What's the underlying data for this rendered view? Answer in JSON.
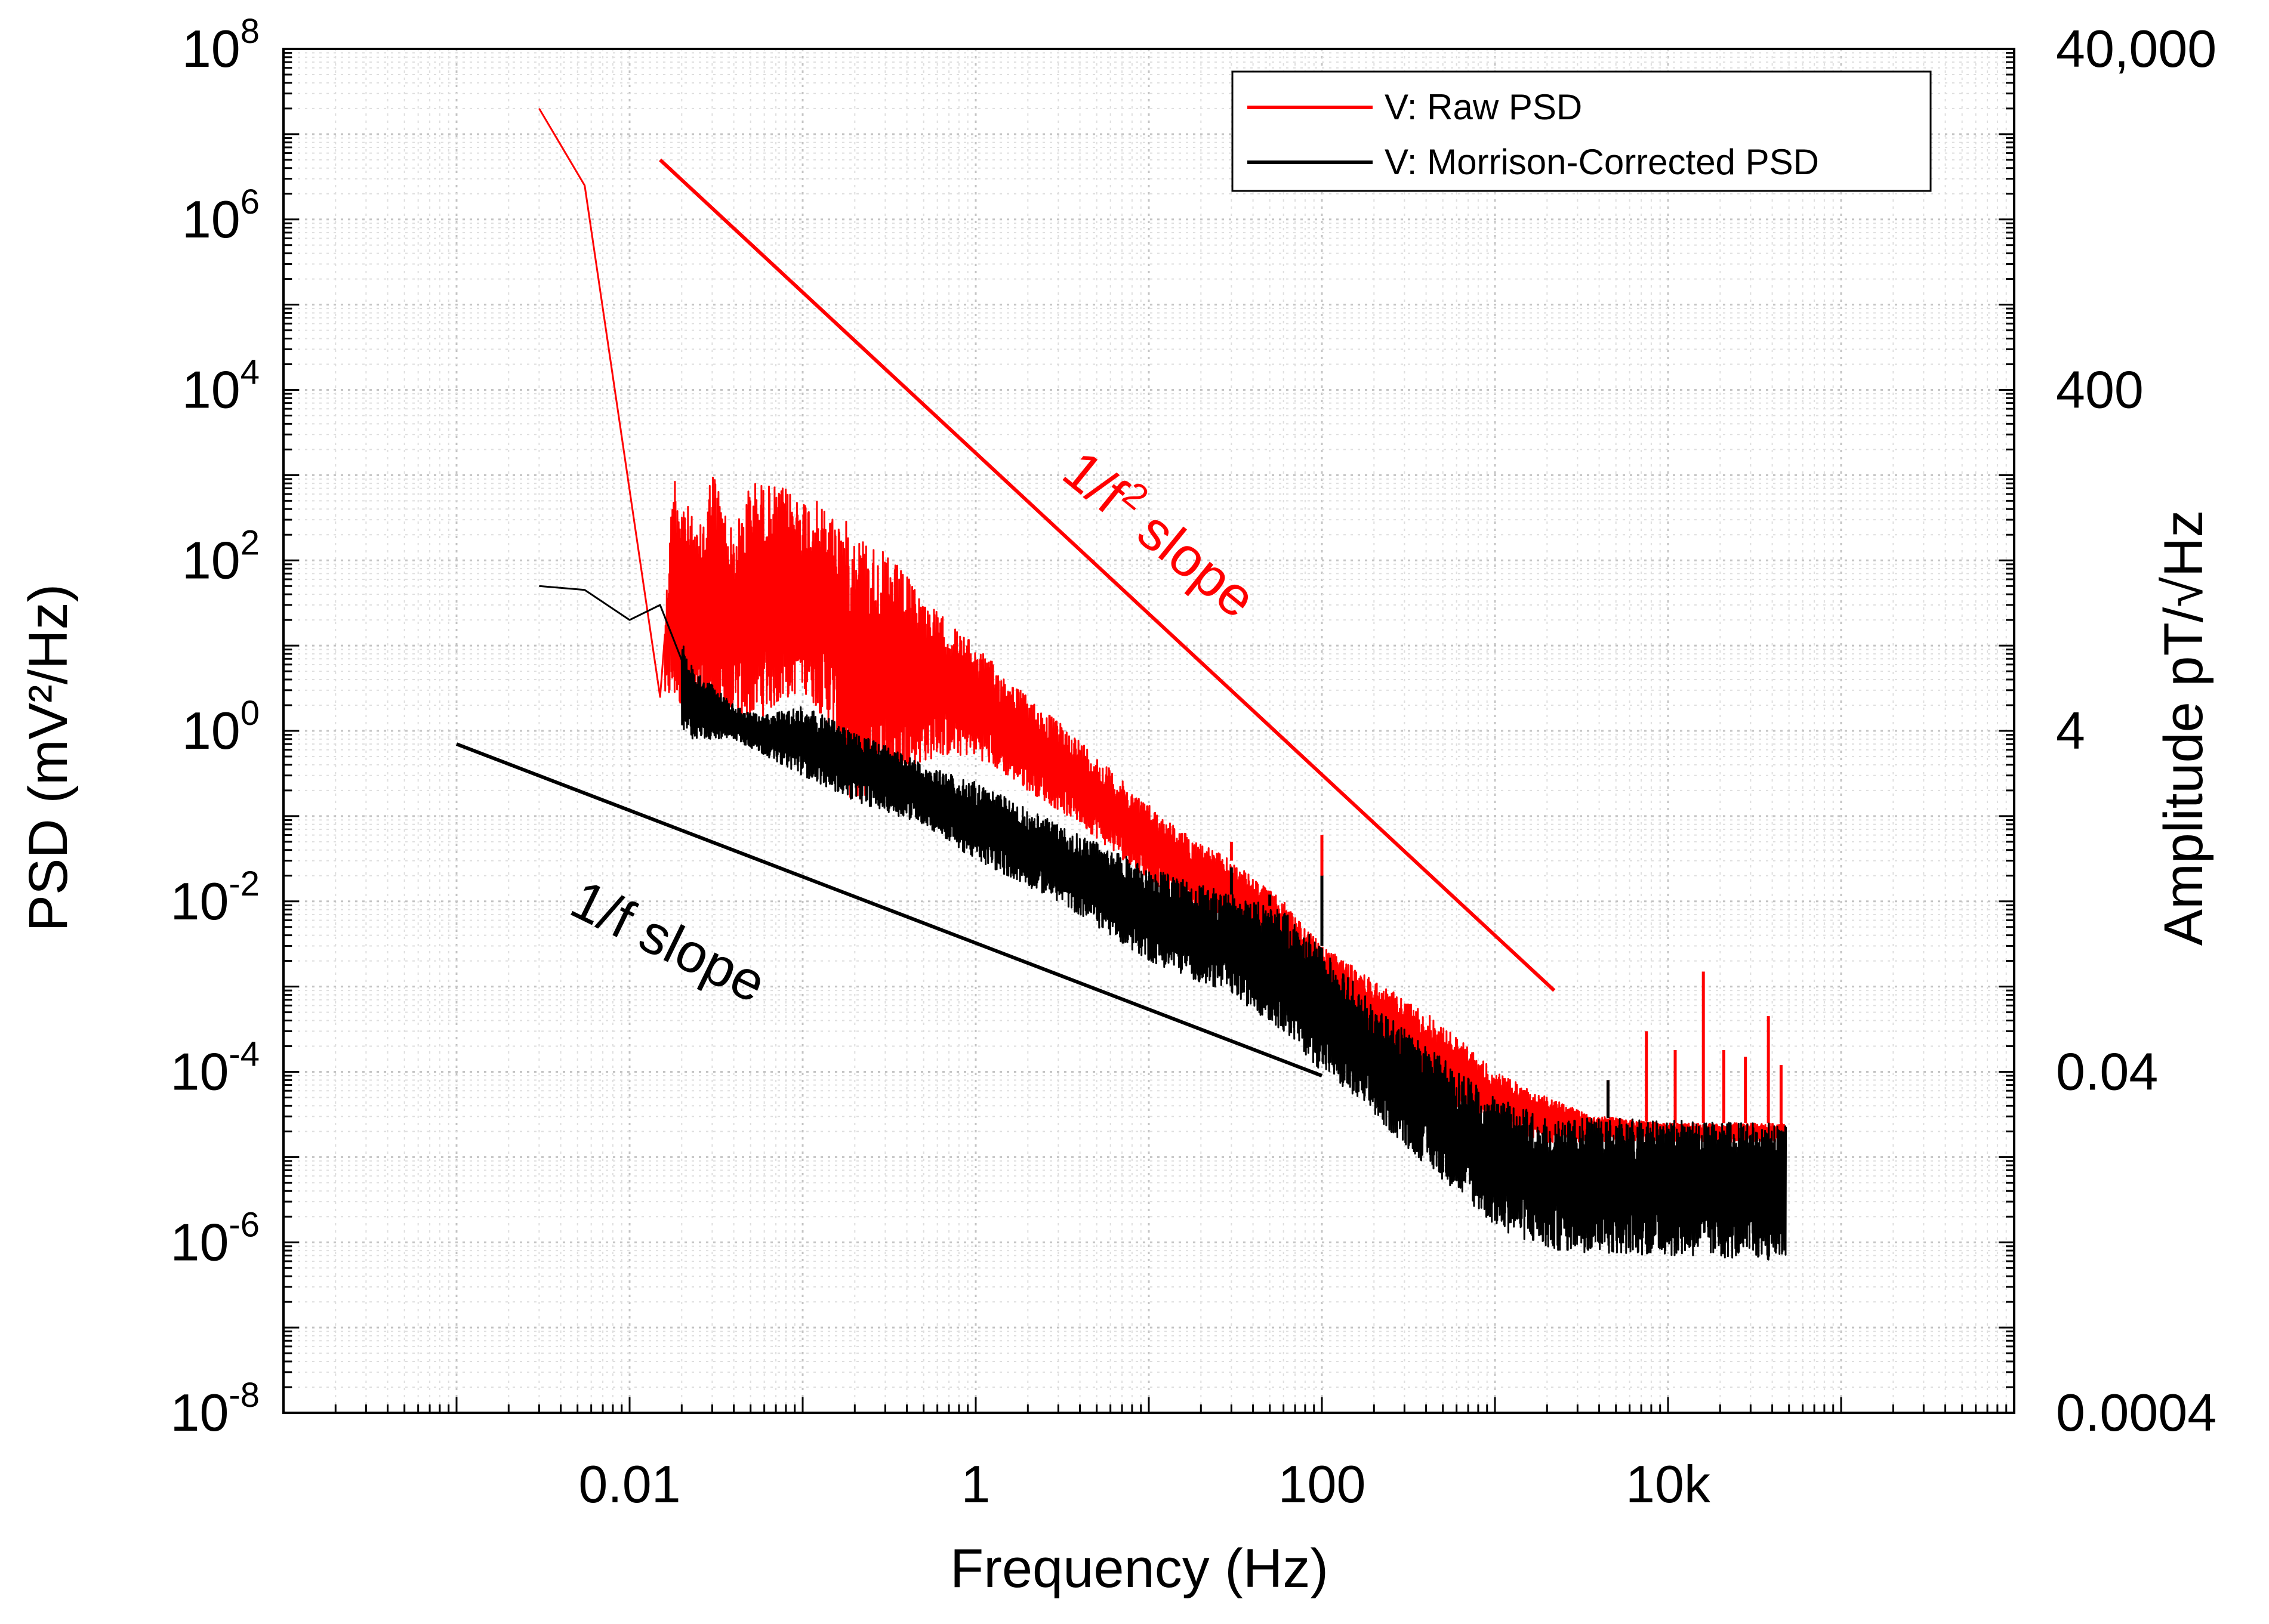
{
  "chart_data": {
    "type": "line",
    "title": "",
    "xlabel": "Frequency (Hz)",
    "ylabel": "PSD (mV²/Hz)",
    "ylabel_right": "Amplitude pT/√Hz",
    "xscale": "log",
    "yscale": "log",
    "xlim": [
      0.0001,
      1000000
    ],
    "ylim": [
      1e-08,
      100000000.0
    ],
    "grid": "major and minor, dotted",
    "legend_position": "top-right",
    "x_ticks": [
      {
        "value": 0.01,
        "label": "0.01"
      },
      {
        "value": 1,
        "label": "1"
      },
      {
        "value": 100,
        "label": "100"
      },
      {
        "value": 10000,
        "label": "10k"
      }
    ],
    "y_ticks": [
      {
        "value": 100000000.0,
        "base": "10",
        "exp": "8"
      },
      {
        "value": 1000000.0,
        "base": "10",
        "exp": "6"
      },
      {
        "value": 10000.0,
        "base": "10",
        "exp": "4"
      },
      {
        "value": 100.0,
        "base": "10",
        "exp": "2"
      },
      {
        "value": 1,
        "base": "10",
        "exp": "0"
      },
      {
        "value": 0.01,
        "base": "10",
        "exp": "-2"
      },
      {
        "value": 0.0001,
        "base": "10",
        "exp": "-4"
      },
      {
        "value": 1e-06,
        "base": "10",
        "exp": "-6"
      },
      {
        "value": 1e-08,
        "base": "10",
        "exp": "-8"
      }
    ],
    "right_ticks": [
      {
        "at": 100000000.0,
        "label": "40,000"
      },
      {
        "at": 10000.0,
        "label": "400"
      },
      {
        "at": 1,
        "label": "4"
      },
      {
        "at": 0.0001,
        "label": "0.04"
      },
      {
        "at": 1e-08,
        "label": "0.0004"
      }
    ],
    "series": [
      {
        "name": "V: Raw PSD",
        "color": "#ff0000",
        "envelope_upper": [
          [
            0.003,
            20000000
          ],
          [
            0.0055,
            2500000
          ],
          [
            0.015,
            2.5
          ],
          [
            0.018,
            1300
          ],
          [
            0.025,
            200
          ],
          [
            0.03,
            1400
          ],
          [
            0.04,
            200
          ],
          [
            0.05,
            900
          ],
          [
            0.08,
            700
          ],
          [
            0.12,
            500
          ],
          [
            0.2,
            250
          ],
          [
            0.35,
            90
          ],
          [
            0.6,
            25
          ],
          [
            1,
            10
          ],
          [
            2,
            2.5
          ],
          [
            4,
            0.8
          ],
          [
            8,
            0.2
          ],
          [
            15,
            0.07
          ],
          [
            30,
            0.03
          ],
          [
            60,
            0.01
          ],
          [
            100,
            0.003
          ],
          [
            200,
            0.0012
          ],
          [
            400,
            0.0005
          ],
          [
            700,
            0.0002
          ],
          [
            1000,
            0.0001
          ],
          [
            2000,
            5e-05
          ],
          [
            4000,
            3e-05
          ],
          [
            10000,
            2.5e-05
          ],
          [
            48000,
            2.5e-05
          ]
        ],
        "envelope_lower": [
          [
            0.015,
            2.5
          ],
          [
            0.03,
            1
          ],
          [
            0.06,
            1.5
          ],
          [
            0.1,
            3
          ],
          [
            0.15,
            1
          ],
          [
            0.2,
            0.1
          ],
          [
            0.25,
            0.2
          ],
          [
            0.35,
            0.3
          ],
          [
            0.6,
            0.5
          ],
          [
            1,
            0.5
          ],
          [
            2,
            0.2
          ],
          [
            4,
            0.08
          ],
          [
            8,
            0.025
          ],
          [
            15,
            0.01
          ],
          [
            30,
            0.005
          ],
          [
            60,
            0.002
          ],
          [
            100,
            0.0006
          ],
          [
            200,
            0.0002
          ],
          [
            400,
            7e-05
          ],
          [
            700,
            3e-05
          ],
          [
            1000,
            2e-05
          ],
          [
            2000,
            1.5e-05
          ],
          [
            10000,
            1.5e-05
          ],
          [
            48000,
            1.5e-05
          ]
        ],
        "spikes": [
          [
            30,
            0.05
          ],
          [
            50,
            0.012
          ],
          [
            100,
            0.06
          ],
          [
            1000,
            0.0001
          ],
          [
            4500,
            8e-05
          ],
          [
            7500,
            0.0003
          ],
          [
            11000,
            0.00018
          ],
          [
            16000,
            0.0015
          ],
          [
            21000,
            0.00018
          ],
          [
            28000,
            0.00015
          ],
          [
            38000,
            0.00045
          ],
          [
            45000,
            0.00012
          ]
        ]
      },
      {
        "name": "V: Morrison-Corrected PSD",
        "color": "#000000",
        "envelope_upper": [
          [
            0.003,
            50
          ],
          [
            0.0055,
            45
          ],
          [
            0.01,
            20
          ],
          [
            0.015,
            30
          ],
          [
            0.025,
            5
          ],
          [
            0.04,
            2
          ],
          [
            0.06,
            1.5
          ],
          [
            0.1,
            2
          ],
          [
            0.2,
            1
          ],
          [
            0.5,
            0.4
          ],
          [
            1,
            0.25
          ],
          [
            3,
            0.08
          ],
          [
            10,
            0.025
          ],
          [
            30,
            0.012
          ],
          [
            60,
            0.008
          ],
          [
            100,
            0.003
          ],
          [
            200,
            0.0006
          ],
          [
            400,
            0.0002
          ],
          [
            1000,
            5e-05
          ],
          [
            2000,
            3e-05
          ],
          [
            48000,
            2.5e-05
          ]
        ],
        "envelope_lower": [
          [
            0.04,
            0.8
          ],
          [
            0.1,
            0.3
          ],
          [
            0.2,
            0.15
          ],
          [
            0.5,
            0.08
          ],
          [
            1,
            0.03
          ],
          [
            3,
            0.01
          ],
          [
            10,
            0.002
          ],
          [
            30,
            0.0008
          ],
          [
            60,
            0.0003
          ],
          [
            100,
            0.0001
          ],
          [
            200,
            3e-05
          ],
          [
            400,
            8e-06
          ],
          [
            700,
            3e-06
          ],
          [
            1000,
            1.5e-06
          ],
          [
            2000,
            8e-07
          ],
          [
            48000,
            6e-07
          ]
        ],
        "spikes": [
          [
            30,
            0.025
          ],
          [
            50,
            0.012
          ],
          [
            100,
            0.02
          ],
          [
            4500,
            8e-05
          ]
        ]
      },
      {
        "name": "1/f² reference line",
        "color": "#ff0000",
        "points": [
          [
            0.015,
            5000000
          ],
          [
            2200,
            0.0009
          ]
        ]
      },
      {
        "name": "1/f reference line",
        "color": "#000000",
        "points": [
          [
            0.001,
            0.7
          ],
          [
            100,
            9e-05
          ]
        ]
      }
    ],
    "annotations": [
      {
        "text": "1/f slope",
        "color": "#000000"
      },
      {
        "text_main": "1/f",
        "text_sup": "2",
        "text_rest": " slope",
        "color": "#ff0000"
      }
    ]
  }
}
